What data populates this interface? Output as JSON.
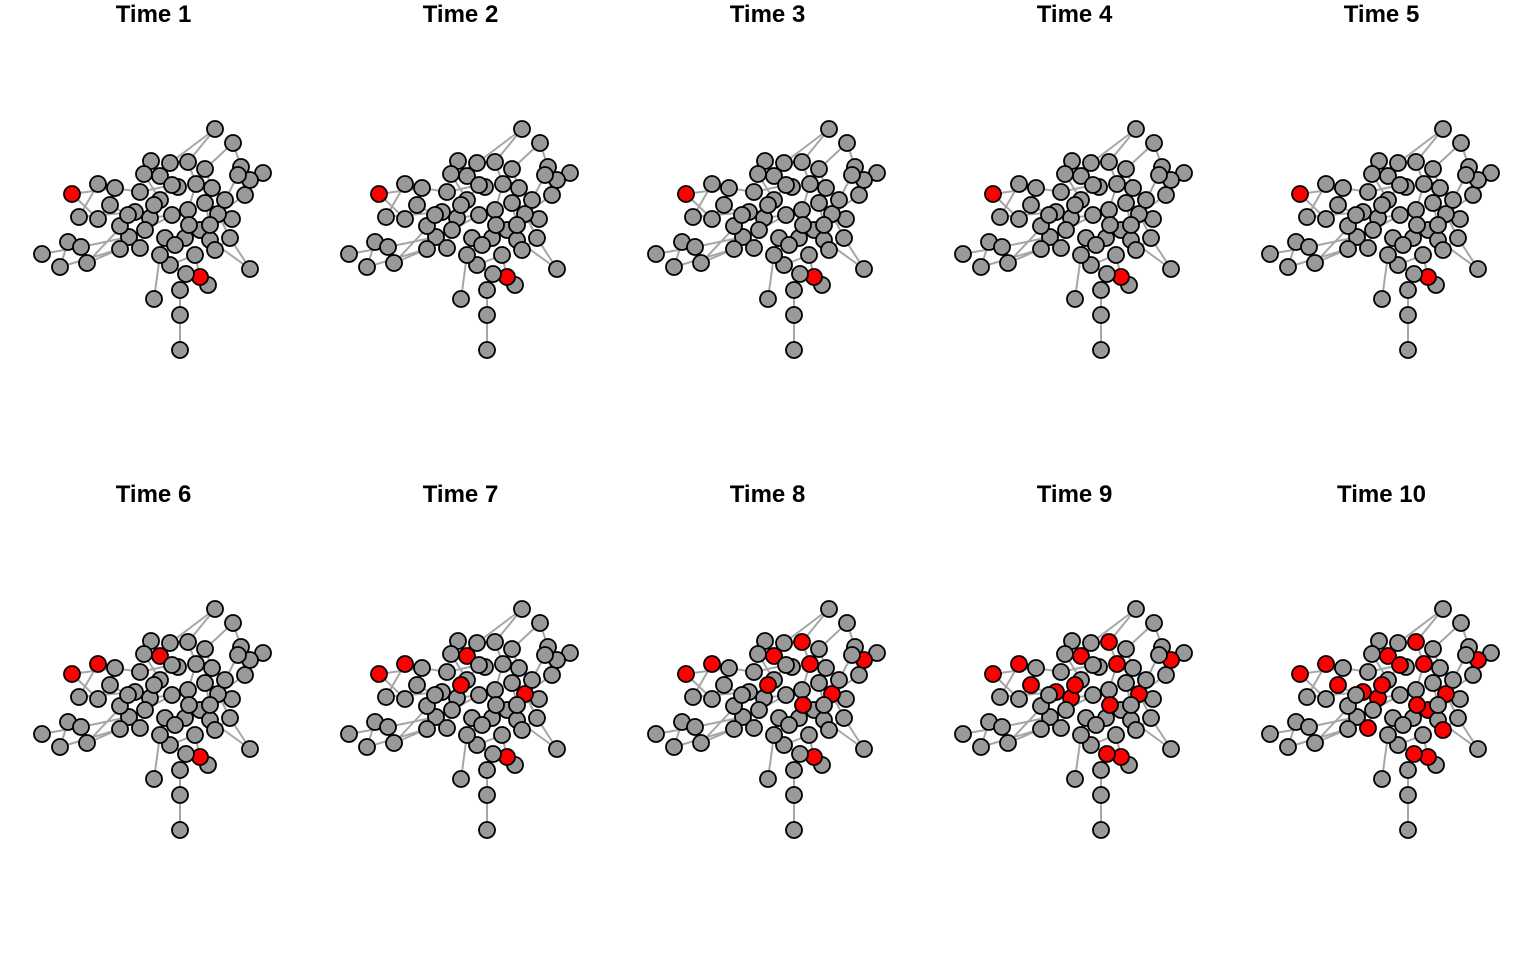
{
  "figure": {
    "node_color_default": "#999999",
    "node_color_infected": "#ff0000",
    "node_stroke": "#000000",
    "edge_color": "#a6a6a6"
  },
  "panels": [
    {
      "title": "Time 1",
      "infected": [
        2,
        60
      ]
    },
    {
      "title": "Time 2",
      "infected": [
        2,
        60
      ]
    },
    {
      "title": "Time 3",
      "infected": [
        2,
        60
      ]
    },
    {
      "title": "Time 4",
      "infected": [
        2,
        60
      ]
    },
    {
      "title": "Time 5",
      "infected": [
        2,
        60
      ]
    },
    {
      "title": "Time 6",
      "infected": [
        2,
        60,
        7,
        17
      ]
    },
    {
      "title": "Time 7",
      "infected": [
        2,
        60,
        7,
        17,
        28,
        64
      ]
    },
    {
      "title": "Time 8",
      "infected": [
        2,
        60,
        7,
        17,
        28,
        64,
        19,
        22,
        49,
        57,
        65
      ]
    },
    {
      "title": "Time 9",
      "infected": [
        2,
        60,
        7,
        17,
        28,
        64,
        19,
        22,
        49,
        57,
        65,
        14,
        40,
        56,
        61,
        81,
        82
      ]
    },
    {
      "title": "Time 10",
      "infected": [
        2,
        60,
        7,
        17,
        28,
        64,
        19,
        22,
        49,
        57,
        65,
        14,
        40,
        56,
        61,
        81,
        82,
        37,
        43,
        51,
        62
      ]
    }
  ]
}
